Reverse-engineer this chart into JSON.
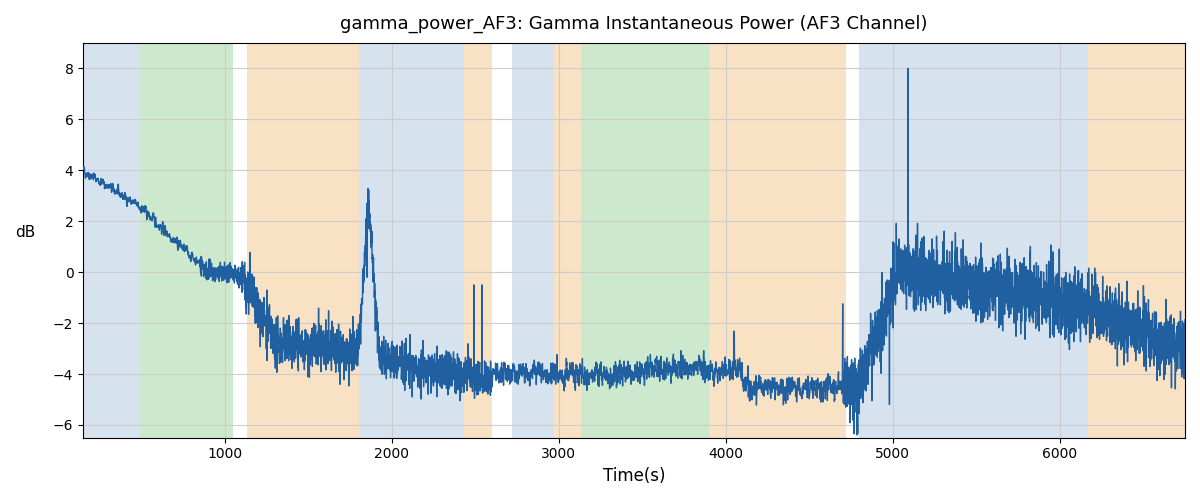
{
  "title": "gamma_power_AF3: Gamma Instantaneous Power (AF3 Channel)",
  "xlabel": "Time(s)",
  "ylabel": "dB",
  "xlim": [
    150,
    6750
  ],
  "ylim": [
    -6.5,
    9.0
  ],
  "yticks": [
    -6,
    -4,
    -2,
    0,
    2,
    4,
    6,
    8
  ],
  "xticks": [
    1000,
    2000,
    3000,
    4000,
    5000,
    6000
  ],
  "line_color": "#2060a0",
  "line_width": 1.0,
  "background_color": "#ffffff",
  "grid_color": "#cccccc",
  "bg_regions": [
    {
      "xstart": 150,
      "xend": 490,
      "color": "#aec8e0",
      "alpha": 0.5
    },
    {
      "xstart": 490,
      "xend": 1050,
      "color": "#90d090",
      "alpha": 0.45
    },
    {
      "xstart": 1050,
      "xend": 1130,
      "color": "#ffffff",
      "alpha": 0.0
    },
    {
      "xstart": 1130,
      "xend": 1800,
      "color": "#f5c992",
      "alpha": 0.55
    },
    {
      "xstart": 1800,
      "xend": 2430,
      "color": "#aec8e0",
      "alpha": 0.5
    },
    {
      "xstart": 2430,
      "xend": 2600,
      "color": "#f5c992",
      "alpha": 0.55
    },
    {
      "xstart": 2600,
      "xend": 2720,
      "color": "#ffffff",
      "alpha": 0.0
    },
    {
      "xstart": 2720,
      "xend": 2970,
      "color": "#aec8e0",
      "alpha": 0.5
    },
    {
      "xstart": 2970,
      "xend": 3130,
      "color": "#f5c992",
      "alpha": 0.55
    },
    {
      "xstart": 3130,
      "xend": 3900,
      "color": "#90d090",
      "alpha": 0.45
    },
    {
      "xstart": 3900,
      "xend": 4720,
      "color": "#f5c992",
      "alpha": 0.55
    },
    {
      "xstart": 4720,
      "xend": 4800,
      "color": "#ffffff",
      "alpha": 0.0
    },
    {
      "xstart": 4800,
      "xend": 6170,
      "color": "#aec8e0",
      "alpha": 0.5
    },
    {
      "xstart": 6170,
      "xend": 6750,
      "color": "#f5c992",
      "alpha": 0.55
    }
  ],
  "seed": 42,
  "time_start": 150,
  "time_end": 6750,
  "total_points": 6600
}
